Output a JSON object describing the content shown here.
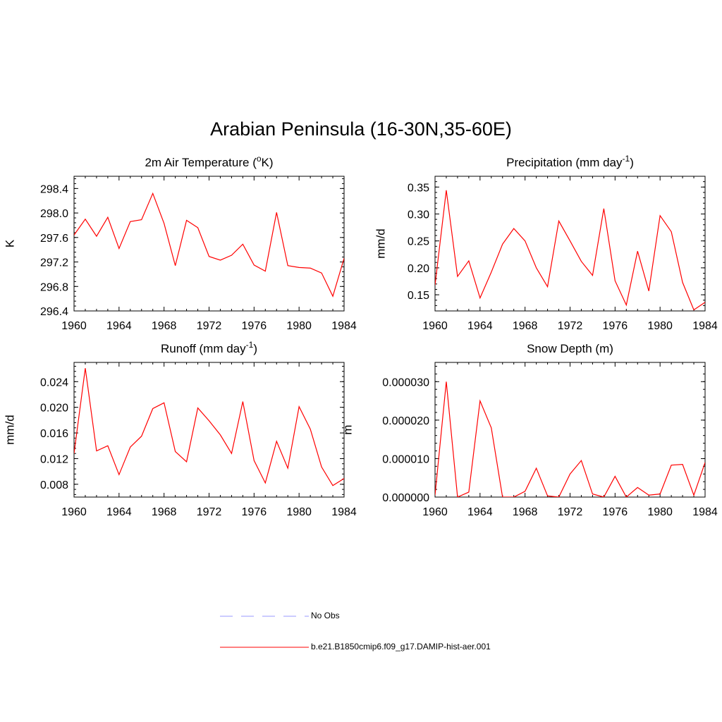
{
  "figure": {
    "title": "Arabian Peninsula (16-30N,35-60E)"
  },
  "legend": {
    "entries": [
      {
        "label": "No Obs",
        "color": "#9999ff",
        "style": "dashed"
      },
      {
        "label": "b.e21.B1850cmip6.f09_g17.DAMIP-hist-aer.001",
        "color": "#ff0000",
        "style": "solid"
      }
    ]
  },
  "chart_data": [
    {
      "type": "line",
      "title": "2m Air Temperature (",
      "title_sup": "o",
      "title_end": "K)",
      "ylabel": "K",
      "xlim": [
        1960,
        1984
      ],
      "xticks": [
        1960,
        1964,
        1968,
        1972,
        1976,
        1980,
        1984
      ],
      "ylim": [
        296.4,
        298.6
      ],
      "yticks": [
        "296.4",
        "296.8",
        "297.2",
        "297.6",
        "298.0",
        "298.4"
      ],
      "series": [
        {
          "color": "#ff0000",
          "x": [
            1960,
            1961,
            1962,
            1963,
            1964,
            1965,
            1966,
            1967,
            1968,
            1969,
            1970,
            1971,
            1972,
            1973,
            1974,
            1975,
            1976,
            1977,
            1978,
            1979,
            1980,
            1981,
            1982,
            1983,
            1984
          ],
          "values": [
            297.64,
            297.9,
            297.62,
            297.93,
            297.42,
            297.86,
            297.89,
            298.32,
            297.83,
            297.14,
            297.88,
            297.76,
            297.29,
            297.23,
            297.31,
            297.49,
            297.15,
            297.05,
            298.01,
            297.14,
            297.11,
            297.1,
            297.02,
            296.64,
            297.26
          ]
        }
      ]
    },
    {
      "type": "line",
      "title": "Precipitation (mm day",
      "title_sup": "-1",
      "title_end": ")",
      "ylabel": "mm/d",
      "xlim": [
        1960,
        1984
      ],
      "xticks": [
        1960,
        1964,
        1968,
        1972,
        1976,
        1980,
        1984
      ],
      "ylim": [
        0.12,
        0.37
      ],
      "yticks": [
        "0.15",
        "0.20",
        "0.25",
        "0.30",
        "0.35"
      ],
      "series": [
        {
          "color": "#ff0000",
          "x": [
            1960,
            1961,
            1962,
            1963,
            1964,
            1965,
            1966,
            1967,
            1968,
            1969,
            1970,
            1971,
            1972,
            1973,
            1974,
            1975,
            1976,
            1977,
            1978,
            1979,
            1980,
            1981,
            1982,
            1983,
            1984
          ],
          "values": [
            0.168,
            0.344,
            0.184,
            0.213,
            0.144,
            0.192,
            0.244,
            0.273,
            0.25,
            0.2,
            0.165,
            0.287,
            0.25,
            0.212,
            0.186,
            0.31,
            0.176,
            0.131,
            0.231,
            0.157,
            0.297,
            0.267,
            0.173,
            0.122,
            0.136
          ]
        }
      ]
    },
    {
      "type": "line",
      "title": "Runoff (mm day",
      "title_sup": "-1",
      "title_end": ")",
      "ylabel": "mm/d",
      "xlim": [
        1960,
        1984
      ],
      "xticks": [
        1960,
        1964,
        1968,
        1972,
        1976,
        1980,
        1984
      ],
      "ylim": [
        0.006,
        0.027
      ],
      "yticks": [
        "0.008",
        "0.012",
        "0.016",
        "0.020",
        "0.024"
      ],
      "series": [
        {
          "color": "#ff0000",
          "x": [
            1960,
            1961,
            1962,
            1963,
            1964,
            1965,
            1966,
            1967,
            1968,
            1969,
            1970,
            1971,
            1972,
            1973,
            1974,
            1975,
            1976,
            1977,
            1978,
            1979,
            1980,
            1981,
            1982,
            1983,
            1984
          ],
          "values": [
            0.0128,
            0.0261,
            0.0132,
            0.014,
            0.0095,
            0.0138,
            0.0155,
            0.0198,
            0.0207,
            0.0131,
            0.0115,
            0.0199,
            0.0179,
            0.0157,
            0.0128,
            0.0209,
            0.0117,
            0.0082,
            0.0147,
            0.0105,
            0.0201,
            0.0166,
            0.0107,
            0.0078,
            0.0089
          ]
        }
      ]
    },
    {
      "type": "line",
      "title": "Snow Depth (m)",
      "title_sup": "",
      "title_end": "",
      "ylabel": "m",
      "xlim": [
        1960,
        1984
      ],
      "xticks": [
        1960,
        1964,
        1968,
        1972,
        1976,
        1980,
        1984
      ],
      "ylim": [
        0,
        3.5e-05
      ],
      "yticks": [
        "0.000000",
        "0.000010",
        "0.000020",
        "0.000030"
      ],
      "series": [
        {
          "color": "#ff0000",
          "x": [
            1960,
            1961,
            1962,
            1963,
            1964,
            1965,
            1966,
            1967,
            1968,
            1969,
            1970,
            1971,
            1972,
            1973,
            1974,
            1975,
            1976,
            1977,
            1978,
            1979,
            1980,
            1981,
            1982,
            1983,
            1984
          ],
          "values": [
            5e-07,
            3e-05,
            0.0,
            1.3e-06,
            2.5e-05,
            1.8e-05,
            0.0,
            0.0,
            1.5e-06,
            7.5e-06,
            3e-07,
            0.0,
            6e-06,
            9.5e-06,
            8e-07,
            0.0,
            5.4e-06,
            0.0,
            2.5e-06,
            5e-07,
            8e-07,
            8.3e-06,
            8.5e-06,
            5e-07,
            9e-06
          ]
        }
      ]
    }
  ]
}
